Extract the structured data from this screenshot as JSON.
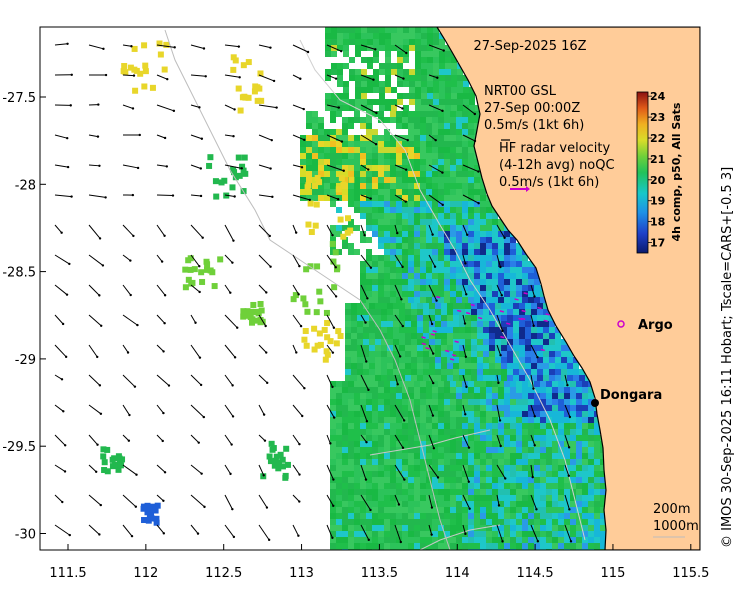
{
  "title": "27-Sep-2025 16Z",
  "argo": {
    "line1": "NRT00 GSL",
    "line2": "27-Sep 00:00Z",
    "line3": "0.5m/s (1kt 6h)"
  },
  "hf_radar": {
    "line1": "HF radar velocity",
    "line2": "(4-12h avg) noQC",
    "line3": "0.5m/s (1kt 6h)"
  },
  "colorbar": {
    "label": "4h comp, p50, All Sats",
    "ticks": [
      "24",
      "23",
      "22",
      "21",
      "20",
      "19",
      "18",
      "17"
    ],
    "range": [
      16.5,
      24.2
    ]
  },
  "credit": "© IMOS 30-Sep-2025 16:11 Hobart; Tscale=CARS+[-0.5 3]",
  "places": [
    {
      "name": "Argo",
      "lon": 114.85,
      "lat": -28.83
    },
    {
      "name": "Dongara",
      "lon": 114.93,
      "lat": -29.25
    }
  ],
  "depth_legend": [
    "200m",
    "1000m"
  ],
  "x_ticks": [
    "111.5",
    "112",
    "112.5",
    "113",
    "113.5",
    "114",
    "114.5",
    "115",
    "115.5"
  ],
  "y_ticks": [
    "-27.5",
    "-28",
    "-28.5",
    "-29",
    "-29.5",
    "-30"
  ],
  "colors": {
    "land": "#FFCC99",
    "arrow_argo": "#CC00CC",
    "arrow_radar": "#000000"
  }
}
